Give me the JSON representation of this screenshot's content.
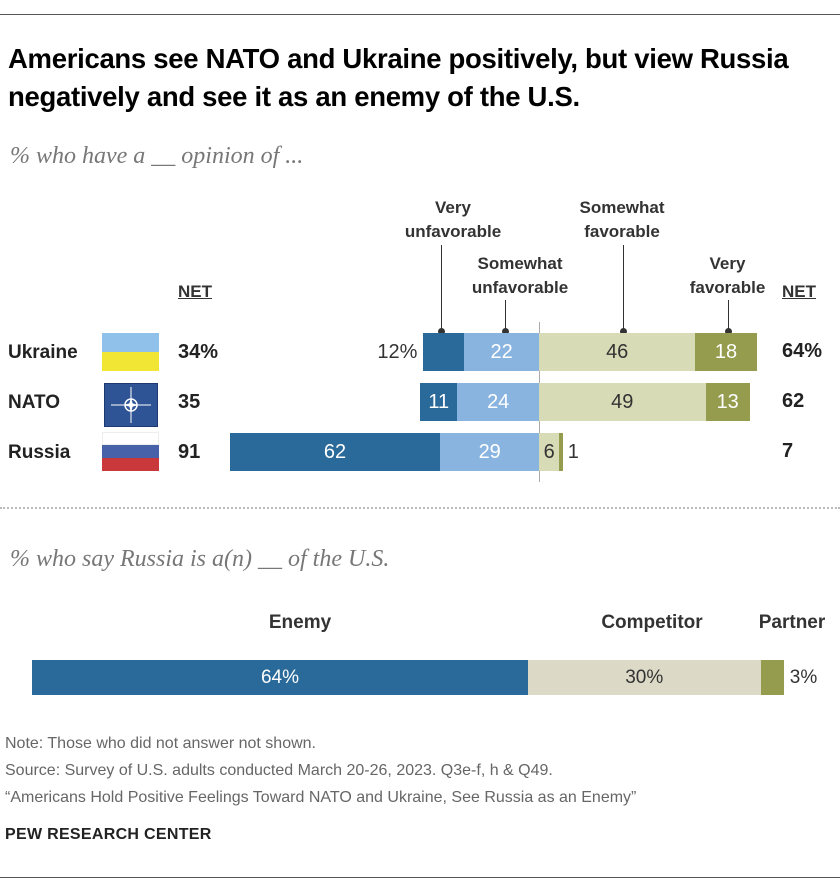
{
  "title": "Americans see NATO and Ukraine positively, but view Russia negatively and see it as an enemy of the U.S.",
  "chart_data": [
    {
      "type": "bar",
      "subtitle": "% who have a __ opinion of ...",
      "categories": [
        "Ukraine",
        "NATO",
        "Russia"
      ],
      "flags": [
        "ukraine-flag",
        "nato-flag",
        "russia-flag"
      ],
      "series": [
        {
          "name": "Very unfavorable",
          "values": [
            12,
            11,
            62
          ],
          "labels": [
            "12%",
            "11",
            "62"
          ],
          "color": "#2a6a9a"
        },
        {
          "name": "Somewhat unfavorable",
          "values": [
            22,
            24,
            29
          ],
          "labels": [
            "22",
            "24",
            "29"
          ],
          "color": "#8ab4e0"
        },
        {
          "name": "Somewhat favorable",
          "values": [
            46,
            49,
            6
          ],
          "labels": [
            "46",
            "49",
            "6"
          ],
          "color": "#d7dbb6"
        },
        {
          "name": "Very favorable",
          "values": [
            18,
            13,
            1
          ],
          "labels": [
            "18",
            "13",
            "1"
          ],
          "color": "#959c4e"
        }
      ],
      "net_header": "NET",
      "net_unfavorable": [
        "34%",
        "35",
        "91"
      ],
      "net_favorable": [
        "64%",
        "62",
        "7"
      ],
      "legend_headers": {
        "very_unfavorable": "Very unfavorable",
        "somewhat_unfavorable": "Somewhat unfavorable",
        "somewhat_favorable": "Somewhat favorable",
        "very_favorable": "Very favorable"
      }
    },
    {
      "type": "bar",
      "subtitle": "% who say Russia is a(n) __ of the U.S.",
      "categories": [
        "Enemy",
        "Competitor",
        "Partner"
      ],
      "values": [
        64,
        30,
        3
      ],
      "labels": [
        "64%",
        "30%",
        "3%"
      ],
      "colors": [
        "#2a6a9a",
        "#dcd9c6",
        "#959c4e"
      ]
    }
  ],
  "notes": {
    "note": "Note: Those who did not answer not shown.",
    "source": "Source: Survey of U.S. adults conducted March 20-26, 2023. Q3e-f, h & Q49.",
    "report": "“Americans Hold Positive Feelings Toward NATO and Ukraine, See Russia as an Enemy”",
    "brand": "PEW RESEARCH CENTER"
  }
}
